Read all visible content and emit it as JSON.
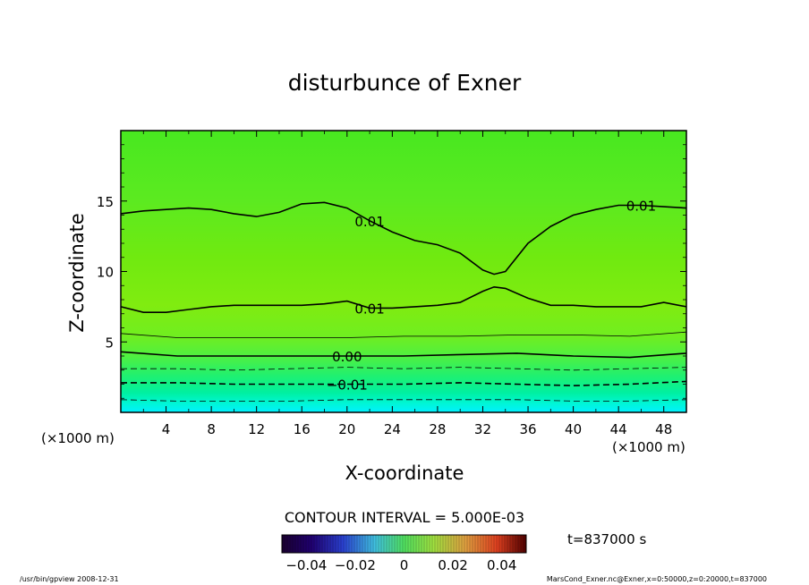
{
  "chart_data": {
    "type": "heatmap",
    "title": "disturbunce of Exner",
    "xlabel": "X-coordinate",
    "ylabel": "Z-coordinate",
    "x_unit": "(×1000 m)",
    "y_unit": "(×1000 m)",
    "xlim": [
      0,
      50
    ],
    "ylim": [
      0,
      20
    ],
    "x_ticks": [
      4,
      8,
      12,
      16,
      20,
      24,
      28,
      32,
      36,
      40,
      44,
      48
    ],
    "y_ticks": [
      5,
      10,
      15
    ],
    "contour_interval_text": "CONTOUR INTERVAL = 5.000E-03",
    "time_text": "t=837000 s",
    "colorbar": {
      "range": [
        -0.05,
        0.05
      ],
      "tick_values": [
        -0.04,
        -0.02,
        0,
        0.02,
        0.04
      ],
      "tick_labels": [
        "−0.04",
        "−0.02",
        "0",
        "0.02",
        "0.04"
      ]
    },
    "contours": [
      {
        "level": "0.01",
        "style": "solid",
        "labels": [
          "0.01",
          "0.01"
        ],
        "x": [
          0,
          2,
          4,
          6,
          8,
          10,
          12,
          14,
          16,
          18,
          20,
          22,
          24,
          26,
          28,
          30,
          32,
          33,
          34,
          36,
          38,
          40,
          42,
          44,
          46,
          48,
          50
        ],
        "z": [
          14.1,
          14.3,
          14.4,
          14.5,
          14.4,
          14.1,
          13.9,
          14.2,
          14.8,
          14.9,
          14.5,
          13.6,
          12.8,
          12.2,
          11.9,
          11.3,
          10.1,
          9.8,
          10.0,
          12.0,
          13.2,
          14.0,
          14.4,
          14.7,
          14.7,
          14.6,
          14.5
        ]
      },
      {
        "level": "0.01",
        "style": "solid",
        "labels": [
          "0.01"
        ],
        "x": [
          0,
          2,
          4,
          6,
          8,
          10,
          12,
          14,
          16,
          18,
          20,
          22,
          24,
          26,
          28,
          30,
          32,
          33,
          34,
          36,
          38,
          40,
          42,
          44,
          46,
          48,
          50
        ],
        "z": [
          7.5,
          7.1,
          7.1,
          7.3,
          7.5,
          7.6,
          7.6,
          7.6,
          7.6,
          7.7,
          7.9,
          7.4,
          7.4,
          7.5,
          7.6,
          7.8,
          8.6,
          8.9,
          8.8,
          8.1,
          7.6,
          7.6,
          7.5,
          7.5,
          7.5,
          7.8,
          7.5
        ]
      },
      {
        "level": "0.005",
        "style": "solid",
        "labels": [],
        "x": [
          0,
          5,
          10,
          15,
          20,
          25,
          30,
          35,
          40,
          45,
          50
        ],
        "z": [
          5.6,
          5.3,
          5.3,
          5.3,
          5.3,
          5.4,
          5.4,
          5.5,
          5.5,
          5.4,
          5.7
        ]
      },
      {
        "level": "0.00",
        "style": "solid",
        "labels": [
          "0.00"
        ],
        "x": [
          0,
          5,
          10,
          15,
          20,
          25,
          30,
          35,
          40,
          45,
          50
        ],
        "z": [
          4.3,
          4.0,
          4.0,
          4.0,
          4.0,
          4.0,
          4.1,
          4.2,
          4.0,
          3.9,
          4.2
        ]
      },
      {
        "level": "-0.005",
        "style": "dashed",
        "labels": [],
        "x": [
          0,
          5,
          10,
          15,
          20,
          25,
          30,
          35,
          40,
          45,
          50
        ],
        "z": [
          3.1,
          3.1,
          3.0,
          3.1,
          3.2,
          3.1,
          3.2,
          3.1,
          3.0,
          3.1,
          3.2
        ]
      },
      {
        "level": "-0.01",
        "style": "dashed",
        "labels": [
          "−0.01"
        ],
        "x": [
          0,
          5,
          10,
          15,
          20,
          25,
          30,
          35,
          40,
          45,
          50
        ],
        "z": [
          2.1,
          2.1,
          2.0,
          2.0,
          2.0,
          2.0,
          2.1,
          2.0,
          1.9,
          2.0,
          2.2
        ]
      },
      {
        "level": "-0.015",
        "style": "dashed",
        "labels": [],
        "x": [
          0,
          5,
          10,
          15,
          20,
          25,
          30,
          35,
          40,
          45,
          50
        ],
        "z": [
          0.9,
          0.8,
          0.8,
          0.8,
          0.9,
          0.9,
          0.9,
          0.9,
          0.8,
          0.8,
          0.9
        ]
      }
    ],
    "grid": false,
    "colormap": "rainbow"
  },
  "footer": {
    "left": "/usr/bin/gpview   2008-12-31",
    "right": "MarsCond_Exner.nc@Exner,x=0:50000,z=0:20000,t=837000"
  }
}
